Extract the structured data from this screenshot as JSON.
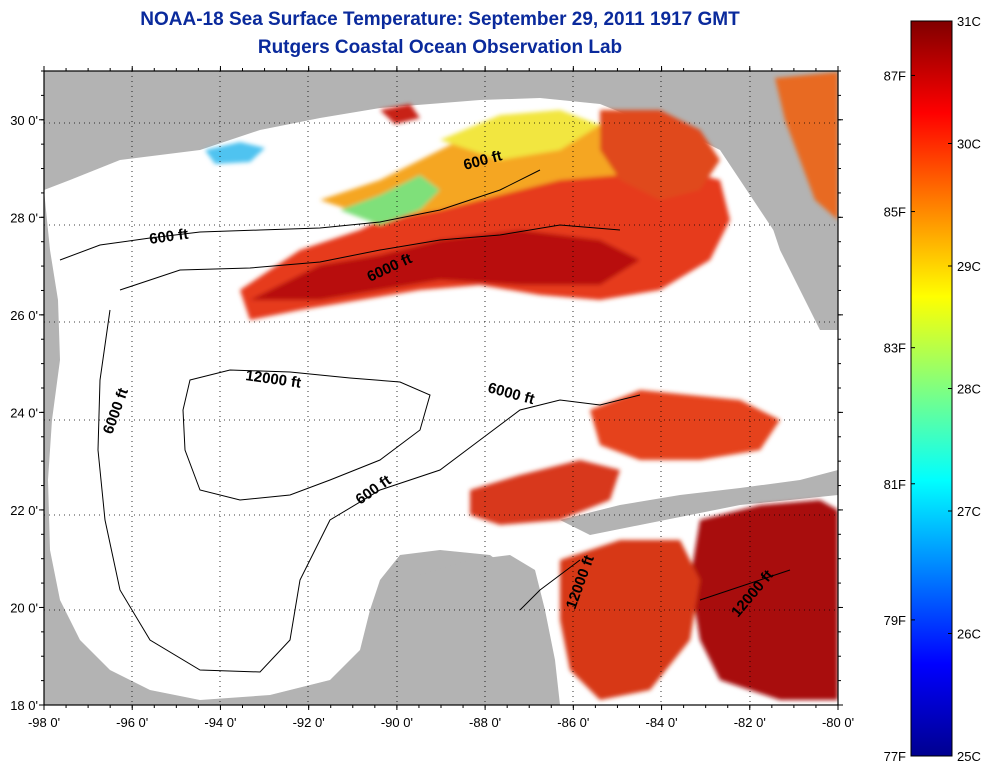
{
  "title": "NOAA-18 Sea Surface Temperature:  September 29, 2011 1917 GMT",
  "subtitle": "Rutgers Coastal Ocean Observation Lab",
  "map": {
    "lon_range": [
      -98,
      -80
    ],
    "lat_range": [
      18,
      31
    ],
    "lon_ticks": [
      "-98 0'",
      "-96 0'",
      "-94 0'",
      "-92 0'",
      "-90 0'",
      "-88 0'",
      "-86 0'",
      "-84 0'",
      "-82 0'",
      "-80 0'"
    ],
    "lat_ticks": [
      "18 0'",
      "20 0'",
      "22 0'",
      "24 0'",
      "26 0'",
      "28 0'",
      "30 0'"
    ],
    "grid": "dotted",
    "land_color": "#b3b3b3",
    "cloud_color": "#ffffff",
    "contour_labels": [
      {
        "text": "600 ft"
      },
      {
        "text": "600 ft"
      },
      {
        "text": "600 ft"
      },
      {
        "text": "6000 ft"
      },
      {
        "text": "6000 ft"
      },
      {
        "text": "6000 ft"
      },
      {
        "text": "12000 ft"
      },
      {
        "text": "12000 ft"
      },
      {
        "text": "12000 ft"
      }
    ]
  },
  "colorbar": {
    "celsius_labels": [
      "31C",
      "30C",
      "29C",
      "28C",
      "27C",
      "26C",
      "25C"
    ],
    "fahrenheit_labels": [
      "87F",
      "85F",
      "83F",
      "81F",
      "79F",
      "77F"
    ],
    "range_c": [
      25,
      31
    ],
    "colors": [
      "#00008f",
      "#0000ff",
      "#0080ff",
      "#00ffff",
      "#80ff80",
      "#ffff00",
      "#ff8000",
      "#ff0000",
      "#800000"
    ]
  }
}
